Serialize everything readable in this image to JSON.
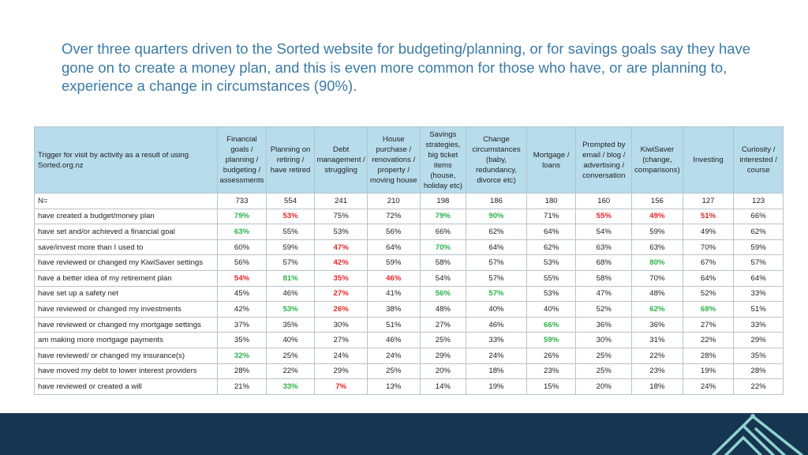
{
  "title": "Over three quarters driven to the Sorted website for budgeting/planning, or for savings goals say they have gone on to create a money plan, and this is even more common for those who have, or are planning to, experience a change in circumstances (90%).",
  "colors": {
    "title": "#3a7aa6",
    "header_bg": "#b7dcec",
    "highlight_green": "#2bb34a",
    "highlight_red": "#e32727",
    "footer": "#163550",
    "logo": "#8fd3d0"
  },
  "table": {
    "corner_label": "Trigger for visit by activity as a result of using Sorted.org.nz",
    "columns": [
      "Financial goals / planning / budgeting / assessments",
      "Planning on retiring / have retired",
      "Debt management / struggling",
      "House purchase / renovations / property / moving house",
      "Savings strategies, big ticket items (house, holiday etc)",
      "Change circumstances (baby, redundancy, divorce etc)",
      "Mortgage / loans",
      "Prompted by email / blog / advertising / conversation",
      "KiwiSaver (change, comparisons)",
      "Investing",
      "Curiosity / interested / course"
    ],
    "rows": [
      {
        "label": "N=",
        "cells": [
          {
            "v": "733"
          },
          {
            "v": "554"
          },
          {
            "v": "241"
          },
          {
            "v": "210"
          },
          {
            "v": "198"
          },
          {
            "v": "186"
          },
          {
            "v": "180"
          },
          {
            "v": "160"
          },
          {
            "v": "156"
          },
          {
            "v": "127"
          },
          {
            "v": "123"
          }
        ]
      },
      {
        "label": "have created a budget/money plan",
        "cells": [
          {
            "v": "79%",
            "h": "green"
          },
          {
            "v": "53%",
            "h": "red"
          },
          {
            "v": "75%"
          },
          {
            "v": "72%"
          },
          {
            "v": "79%",
            "h": "green"
          },
          {
            "v": "90%",
            "h": "green"
          },
          {
            "v": "71%"
          },
          {
            "v": "55%",
            "h": "red"
          },
          {
            "v": "49%",
            "h": "red"
          },
          {
            "v": "51%",
            "h": "red"
          },
          {
            "v": "66%"
          }
        ]
      },
      {
        "label": "have set and/or achieved a financial goal",
        "cells": [
          {
            "v": "63%",
            "h": "green"
          },
          {
            "v": "55%"
          },
          {
            "v": "53%"
          },
          {
            "v": "56%"
          },
          {
            "v": "66%"
          },
          {
            "v": "62%"
          },
          {
            "v": "64%"
          },
          {
            "v": "54%"
          },
          {
            "v": "59%"
          },
          {
            "v": "49%"
          },
          {
            "v": "62%"
          }
        ]
      },
      {
        "label": "save/invest more than I used to",
        "cells": [
          {
            "v": "60%"
          },
          {
            "v": "59%"
          },
          {
            "v": "47%",
            "h": "red"
          },
          {
            "v": "64%"
          },
          {
            "v": "70%",
            "h": "green"
          },
          {
            "v": "64%"
          },
          {
            "v": "62%"
          },
          {
            "v": "63%"
          },
          {
            "v": "63%"
          },
          {
            "v": "70%"
          },
          {
            "v": "59%"
          }
        ]
      },
      {
        "label": "have reviewed or changed my KiwiSaver settings",
        "cells": [
          {
            "v": "56%"
          },
          {
            "v": "57%"
          },
          {
            "v": "42%",
            "h": "red"
          },
          {
            "v": "59%"
          },
          {
            "v": "58%"
          },
          {
            "v": "57%"
          },
          {
            "v": "53%"
          },
          {
            "v": "68%"
          },
          {
            "v": "80%",
            "h": "green"
          },
          {
            "v": "67%"
          },
          {
            "v": "57%"
          }
        ]
      },
      {
        "label": "have a better idea of my retirement plan",
        "cells": [
          {
            "v": "54%",
            "h": "red"
          },
          {
            "v": "81%",
            "h": "green"
          },
          {
            "v": "35%",
            "h": "red"
          },
          {
            "v": "46%",
            "h": "red"
          },
          {
            "v": "54%"
          },
          {
            "v": "57%"
          },
          {
            "v": "55%"
          },
          {
            "v": "58%"
          },
          {
            "v": "70%"
          },
          {
            "v": "64%"
          },
          {
            "v": "64%"
          }
        ]
      },
      {
        "label": "have set up a safety net",
        "cells": [
          {
            "v": "45%"
          },
          {
            "v": "46%"
          },
          {
            "v": "27%",
            "h": "red"
          },
          {
            "v": "41%"
          },
          {
            "v": "56%",
            "h": "green"
          },
          {
            "v": "57%",
            "h": "green"
          },
          {
            "v": "53%"
          },
          {
            "v": "47%"
          },
          {
            "v": "48%"
          },
          {
            "v": "52%"
          },
          {
            "v": "33%"
          }
        ]
      },
      {
        "label": "have reviewed or changed my investments",
        "cells": [
          {
            "v": "42%"
          },
          {
            "v": "53%",
            "h": "green"
          },
          {
            "v": "26%",
            "h": "red"
          },
          {
            "v": "38%"
          },
          {
            "v": "48%"
          },
          {
            "v": "40%"
          },
          {
            "v": "40%"
          },
          {
            "v": "52%"
          },
          {
            "v": "62%",
            "h": "green"
          },
          {
            "v": "68%",
            "h": "green"
          },
          {
            "v": "51%"
          }
        ]
      },
      {
        "label": "have reviewed or changed my mortgage settings",
        "cells": [
          {
            "v": "37%"
          },
          {
            "v": "35%"
          },
          {
            "v": "30%"
          },
          {
            "v": "51%"
          },
          {
            "v": "27%"
          },
          {
            "v": "46%"
          },
          {
            "v": "66%",
            "h": "green"
          },
          {
            "v": "36%"
          },
          {
            "v": "36%"
          },
          {
            "v": "27%"
          },
          {
            "v": "33%"
          }
        ]
      },
      {
        "label": "am making more mortgage payments",
        "cells": [
          {
            "v": "35%"
          },
          {
            "v": "40%"
          },
          {
            "v": "27%"
          },
          {
            "v": "46%"
          },
          {
            "v": "25%"
          },
          {
            "v": "33%"
          },
          {
            "v": "59%",
            "h": "green"
          },
          {
            "v": "30%"
          },
          {
            "v": "31%"
          },
          {
            "v": "22%"
          },
          {
            "v": "29%"
          }
        ]
      },
      {
        "label": "have reviewed/ or changed my insurance(s)",
        "cells": [
          {
            "v": "32%",
            "h": "green"
          },
          {
            "v": "25%"
          },
          {
            "v": "24%"
          },
          {
            "v": "24%"
          },
          {
            "v": "29%"
          },
          {
            "v": "24%"
          },
          {
            "v": "26%"
          },
          {
            "v": "25%"
          },
          {
            "v": "22%"
          },
          {
            "v": "28%"
          },
          {
            "v": "35%"
          }
        ]
      },
      {
        "label": "have moved my debt to lower interest providers",
        "cells": [
          {
            "v": "28%"
          },
          {
            "v": "22%"
          },
          {
            "v": "29%"
          },
          {
            "v": "25%"
          },
          {
            "v": "20%"
          },
          {
            "v": "18%"
          },
          {
            "v": "23%"
          },
          {
            "v": "25%"
          },
          {
            "v": "23%"
          },
          {
            "v": "19%"
          },
          {
            "v": "28%"
          }
        ]
      },
      {
        "label": "have reviewed or created a will",
        "cells": [
          {
            "v": "21%"
          },
          {
            "v": "33%",
            "h": "green"
          },
          {
            "v": "7%",
            "h": "red"
          },
          {
            "v": "13%"
          },
          {
            "v": "14%"
          },
          {
            "v": "19%"
          },
          {
            "v": "15%"
          },
          {
            "v": "20%"
          },
          {
            "v": "18%"
          },
          {
            "v": "24%"
          },
          {
            "v": "22%"
          }
        ]
      }
    ]
  }
}
